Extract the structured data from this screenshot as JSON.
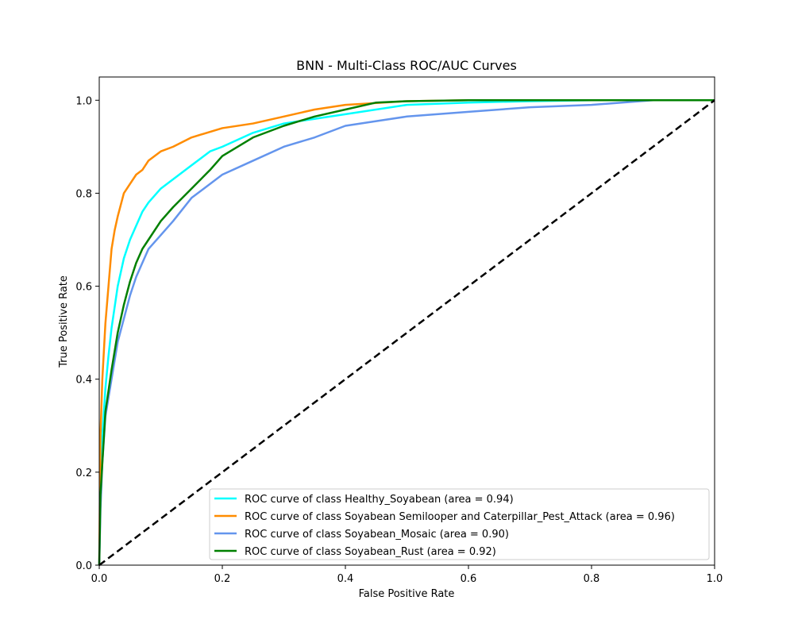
{
  "chart_data": {
    "type": "line",
    "title": "BNN - Multi-Class ROC/AUC Curves",
    "xlabel": "False Positive Rate",
    "ylabel": "True Positive Rate",
    "xlim": [
      0.0,
      1.0
    ],
    "ylim": [
      0.0,
      1.05
    ],
    "x_ticks": [
      "0.0",
      "0.2",
      "0.4",
      "0.6",
      "0.8",
      "1.0"
    ],
    "y_ticks": [
      "0.0",
      "0.2",
      "0.4",
      "0.6",
      "0.8",
      "1.0"
    ],
    "grid": false,
    "legend_position": "lower-right",
    "series": [
      {
        "name": "ROC curve of class Healthy_Soyabean (area = 0.94)",
        "color": "#00ffff",
        "x": [
          0,
          0.002,
          0.005,
          0.01,
          0.015,
          0.02,
          0.03,
          0.04,
          0.05,
          0.06,
          0.07,
          0.08,
          0.1,
          0.12,
          0.15,
          0.18,
          0.2,
          0.25,
          0.3,
          0.35,
          0.4,
          0.5,
          0.6,
          0.7,
          0.8,
          0.9,
          1.0
        ],
        "y": [
          0,
          0.2,
          0.28,
          0.38,
          0.45,
          0.51,
          0.6,
          0.66,
          0.7,
          0.73,
          0.76,
          0.78,
          0.81,
          0.83,
          0.86,
          0.89,
          0.9,
          0.93,
          0.95,
          0.96,
          0.97,
          0.99,
          0.995,
          0.998,
          1.0,
          1.0,
          1.0
        ]
      },
      {
        "name": "ROC curve of class Soyabean Semilooper and Caterpillar_Pest_Attack (area = 0.96)",
        "color": "#ff8c00",
        "x": [
          0,
          0.002,
          0.005,
          0.01,
          0.015,
          0.02,
          0.025,
          0.03,
          0.04,
          0.05,
          0.06,
          0.07,
          0.08,
          0.1,
          0.12,
          0.15,
          0.2,
          0.25,
          0.3,
          0.35,
          0.4,
          0.5,
          0.6,
          0.7,
          0.8,
          0.9,
          1.0
        ],
        "y": [
          0,
          0.28,
          0.4,
          0.52,
          0.6,
          0.68,
          0.72,
          0.75,
          0.8,
          0.82,
          0.84,
          0.85,
          0.87,
          0.89,
          0.9,
          0.92,
          0.94,
          0.95,
          0.965,
          0.98,
          0.99,
          0.998,
          1.0,
          1.0,
          1.0,
          1.0,
          1.0
        ]
      },
      {
        "name": "ROC curve of class Soyabean_Mosaic (area = 0.90)",
        "color": "#6495ed",
        "x": [
          0,
          0.002,
          0.005,
          0.01,
          0.02,
          0.03,
          0.04,
          0.05,
          0.06,
          0.07,
          0.08,
          0.1,
          0.12,
          0.15,
          0.17,
          0.2,
          0.25,
          0.3,
          0.35,
          0.4,
          0.45,
          0.5,
          0.6,
          0.7,
          0.8,
          0.9,
          1.0
        ],
        "y": [
          0,
          0.12,
          0.22,
          0.32,
          0.4,
          0.48,
          0.53,
          0.58,
          0.62,
          0.65,
          0.68,
          0.71,
          0.74,
          0.79,
          0.81,
          0.84,
          0.87,
          0.9,
          0.92,
          0.945,
          0.955,
          0.965,
          0.975,
          0.985,
          0.99,
          1.0,
          1.0
        ]
      },
      {
        "name": "ROC curve of class Soyabean_Rust (area = 0.92)",
        "color": "#008000",
        "x": [
          0,
          0.002,
          0.005,
          0.01,
          0.02,
          0.03,
          0.04,
          0.05,
          0.06,
          0.07,
          0.08,
          0.1,
          0.12,
          0.15,
          0.18,
          0.2,
          0.25,
          0.3,
          0.35,
          0.4,
          0.45,
          0.5,
          0.6,
          0.7,
          0.8,
          0.9,
          1.0
        ],
        "y": [
          0,
          0.15,
          0.22,
          0.33,
          0.42,
          0.5,
          0.56,
          0.61,
          0.65,
          0.68,
          0.7,
          0.74,
          0.77,
          0.81,
          0.85,
          0.88,
          0.92,
          0.945,
          0.965,
          0.98,
          0.995,
          0.998,
          1.0,
          1.0,
          1.0,
          1.0,
          1.0
        ]
      }
    ],
    "diagonal": {
      "color": "#000000",
      "x": [
        0,
        1
      ],
      "y": [
        0,
        1
      ]
    }
  }
}
